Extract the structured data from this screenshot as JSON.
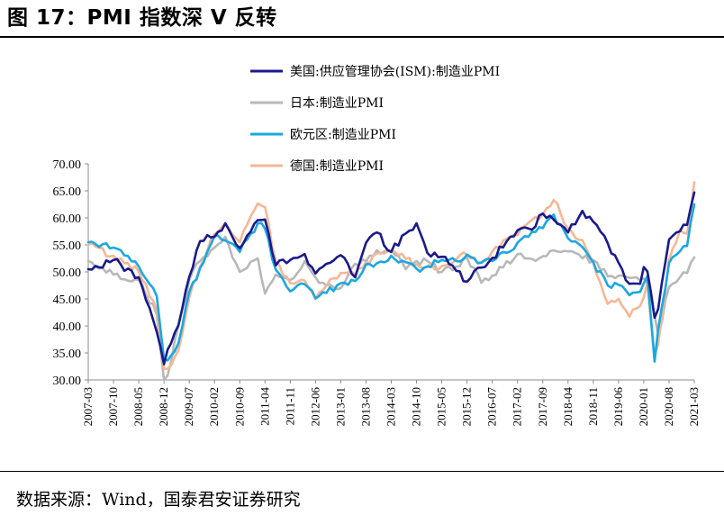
{
  "figure": {
    "title": "图 17：PMI 指数深 V 反转",
    "source": "数据来源：Wind，国泰君安证券研究"
  },
  "chart_data": {
    "type": "line",
    "title": "",
    "xlabel": "",
    "ylabel": "",
    "ylim": [
      30,
      70
    ],
    "yticks": [
      "70.00",
      "65.00",
      "60.00",
      "55.00",
      "50.00",
      "45.00",
      "40.00",
      "35.00",
      "30.00"
    ],
    "xticks": [
      "2007-03",
      "2007-10",
      "2008-05",
      "2008-12",
      "2009-07",
      "2010-02",
      "2010-09",
      "2011-04",
      "2011-11",
      "2012-06",
      "2013-01",
      "2013-08",
      "2014-03",
      "2014-10",
      "2015-05",
      "2015-12",
      "2016-07",
      "2017-02",
      "2017-09",
      "2018-04",
      "2018-11",
      "2019-06",
      "2020-01",
      "2020-08",
      "2021-03"
    ],
    "grid": false,
    "legend_position": "top",
    "anchor_months": [
      "2007-03",
      "2007-10",
      "2008-05",
      "2008-10",
      "2008-12",
      "2009-01",
      "2009-04",
      "2009-07",
      "2009-10",
      "2010-02",
      "2010-05",
      "2010-09",
      "2011-02",
      "2011-04",
      "2011-07",
      "2011-11",
      "2012-03",
      "2012-06",
      "2012-09",
      "2013-01",
      "2013-05",
      "2013-08",
      "2013-11",
      "2014-03",
      "2014-07",
      "2014-10",
      "2015-01",
      "2015-05",
      "2015-09",
      "2015-12",
      "2016-04",
      "2016-07",
      "2017-02",
      "2017-06",
      "2017-09",
      "2017-12",
      "2018-04",
      "2018-08",
      "2018-11",
      "2019-03",
      "2019-06",
      "2019-09",
      "2019-12",
      "2020-01",
      "2020-02",
      "2020-04",
      "2020-05",
      "2020-08",
      "2020-11",
      "2021-01",
      "2021-03"
    ],
    "series": [
      {
        "name": "美国:供应管理协会(ISM):制造业PMI",
        "color": "#1a1a8c",
        "values": [
          50.5,
          52.2,
          49.0,
          38.9,
          32.9,
          35.6,
          40.1,
          49.1,
          55.7,
          56.5,
          59.0,
          54.4,
          59.6,
          59.7,
          51.2,
          52.2,
          53.3,
          49.7,
          51.5,
          53.1,
          49.0,
          55.4,
          57.3,
          53.7,
          57.1,
          59.0,
          53.5,
          52.8,
          50.2,
          48.2,
          50.8,
          52.6,
          57.7,
          57.8,
          60.8,
          59.7,
          57.3,
          61.3,
          59.3,
          55.3,
          51.7,
          47.8,
          47.8,
          50.9,
          50.1,
          41.5,
          43.1,
          56.0,
          57.5,
          58.7,
          64.7
        ]
      },
      {
        "name": "日本:制造业PMI",
        "color": "#b8b8b8",
        "values": [
          52.0,
          49.5,
          48.5,
          42.0,
          30.0,
          30.8,
          40.0,
          48.5,
          52.0,
          54.5,
          56.5,
          50.0,
          52.5,
          46.0,
          49.5,
          48.5,
          52.0,
          49.0,
          47.5,
          47.0,
          51.5,
          52.0,
          54.0,
          54.0,
          50.5,
          52.0,
          52.0,
          50.0,
          51.0,
          52.6,
          48.0,
          49.3,
          53.3,
          52.4,
          52.9,
          54.0,
          53.8,
          52.5,
          52.2,
          49.2,
          49.3,
          48.9,
          48.4,
          48.8,
          47.8,
          41.9,
          38.4,
          47.2,
          49.0,
          49.8,
          52.7
        ]
      },
      {
        "name": "欧元区:制造业PMI",
        "color": "#1ba7e1",
        "values": [
          55.5,
          54.5,
          51.0,
          45.5,
          33.9,
          33.6,
          36.8,
          46.3,
          50.7,
          56.6,
          55.8,
          53.7,
          59.0,
          58.0,
          50.4,
          46.4,
          47.7,
          45.1,
          46.1,
          47.9,
          48.3,
          51.4,
          51.6,
          53.0,
          51.8,
          50.6,
          51.0,
          52.2,
          52.0,
          53.2,
          51.7,
          52.0,
          55.4,
          57.4,
          58.1,
          60.6,
          56.2,
          54.6,
          51.8,
          47.5,
          47.6,
          45.7,
          46.3,
          47.9,
          49.2,
          33.4,
          39.4,
          51.7,
          53.8,
          54.8,
          62.5
        ]
      },
      {
        "name": "德国:制造业PMI",
        "color": "#f5b796",
        "values": [
          55.0,
          53.0,
          50.0,
          43.0,
          32.0,
          32.1,
          35.4,
          45.2,
          51.0,
          57.0,
          59.0,
          55.5,
          62.7,
          62.0,
          52.0,
          47.9,
          48.4,
          45.0,
          47.4,
          49.8,
          49.4,
          51.8,
          53.4,
          54.0,
          52.4,
          51.4,
          51.0,
          51.1,
          52.3,
          53.2,
          51.8,
          53.8,
          56.8,
          59.6,
          60.6,
          63.3,
          58.1,
          55.9,
          51.8,
          44.1,
          45.0,
          41.7,
          43.7,
          45.3,
          48.0,
          34.5,
          36.6,
          52.2,
          57.8,
          57.1,
          66.6
        ]
      }
    ]
  }
}
